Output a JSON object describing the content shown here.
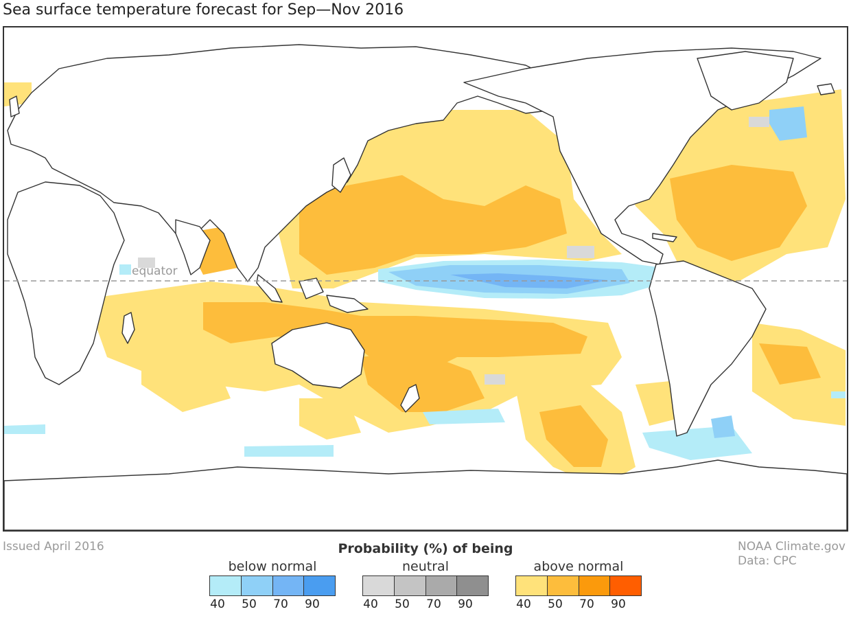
{
  "title": "Sea surface temperature forecast for Sep—Nov 2016",
  "map": {
    "equator_label": "equator",
    "colors": {
      "ocean_background": "#ffffff",
      "land_fill": "#ffffff",
      "coastline": "#333333",
      "equator_line": "#999999"
    }
  },
  "issued": "Issued April 2016",
  "credit": {
    "line1": "NOAA Climate.gov",
    "line2": "Data: CPC"
  },
  "legend": {
    "title": "Probability (%) of being",
    "groups": [
      {
        "name": "below normal",
        "ticks": [
          "40",
          "50",
          "70",
          "90"
        ],
        "colors": [
          "#b4ecf8",
          "#8fd0f7",
          "#74b5f5",
          "#4a9df0"
        ]
      },
      {
        "name": "neutral",
        "ticks": [
          "40",
          "50",
          "70",
          "90"
        ],
        "colors": [
          "#d9d9d9",
          "#c4c4c4",
          "#aaaaaa",
          "#8f8f8f"
        ]
      },
      {
        "name": "above normal",
        "ticks": [
          "40",
          "50",
          "70",
          "90"
        ],
        "colors": [
          "#ffe27a",
          "#fdbd3c",
          "#fb9a0c",
          "#ff5e00"
        ]
      }
    ]
  }
}
